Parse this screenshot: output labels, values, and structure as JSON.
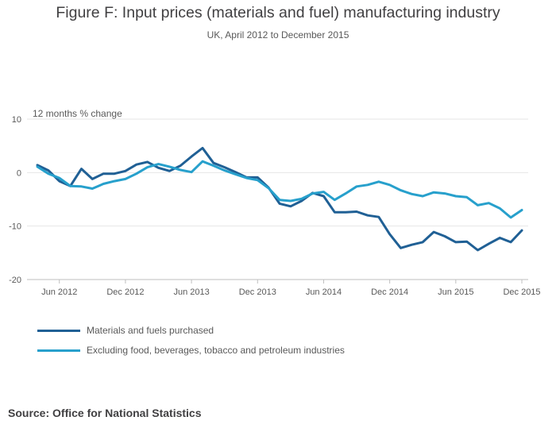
{
  "page": {
    "title": "Figure F: Input prices (materials and fuel) manufacturing industry",
    "subtitle": "UK, April 2012 to December 2015",
    "source": "Source: Office for National Statistics"
  },
  "chart_data": {
    "type": "line",
    "title": "Figure F: Input prices (materials and fuel) manufacturing industry",
    "subtitle": "UK, April 2012 to December 2015",
    "xlabel": "",
    "ylabel": "12 months % change",
    "ylim": [
      -20,
      10
    ],
    "yticks": [
      10,
      0,
      -10,
      -20
    ],
    "ytick_labels": [
      "10",
      "0",
      "-10",
      "-20"
    ],
    "xtick_labels": [
      "Jun 2012",
      "Dec 2012",
      "Jun 2013",
      "Dec 2013",
      "Jun 2014",
      "Dec 2014",
      "Jun 2015",
      "Dec 2015"
    ],
    "xtick_indices": [
      2,
      8,
      14,
      20,
      26,
      32,
      38,
      44
    ],
    "grid": true,
    "legend_position": "bottom-left",
    "x": [
      "Apr 2012",
      "May 2012",
      "Jun 2012",
      "Jul 2012",
      "Aug 2012",
      "Sep 2012",
      "Oct 2012",
      "Nov 2012",
      "Dec 2012",
      "Jan 2013",
      "Feb 2013",
      "Mar 2013",
      "Apr 2013",
      "May 2013",
      "Jun 2013",
      "Jul 2013",
      "Aug 2013",
      "Sep 2013",
      "Oct 2013",
      "Nov 2013",
      "Dec 2013",
      "Jan 2014",
      "Feb 2014",
      "Mar 2014",
      "Apr 2014",
      "May 2014",
      "Jun 2014",
      "Jul 2014",
      "Aug 2014",
      "Sep 2014",
      "Oct 2014",
      "Nov 2014",
      "Dec 2014",
      "Jan 2015",
      "Feb 2015",
      "Mar 2015",
      "Apr 2015",
      "May 2015",
      "Jun 2015",
      "Jul 2015",
      "Aug 2015",
      "Sep 2015",
      "Oct 2015",
      "Nov 2015",
      "Dec 2015"
    ],
    "series": [
      {
        "name": "Materials and fuels purchased",
        "color": "#206095",
        "values": [
          1.4,
          0.4,
          -1.6,
          -2.5,
          0.7,
          -1.2,
          -0.2,
          -0.2,
          0.3,
          1.5,
          2.0,
          0.9,
          0.3,
          1.3,
          3.0,
          4.6,
          1.8,
          1.0,
          0.1,
          -0.9,
          -0.9,
          -2.8,
          -5.8,
          -6.3,
          -5.3,
          -3.8,
          -4.4,
          -7.4,
          -7.4,
          -7.3,
          -8.0,
          -8.3,
          -11.5,
          -14.1,
          -13.5,
          -13.0,
          -11.1,
          -11.9,
          -13.0,
          -12.9,
          -14.5,
          -13.3,
          -12.2,
          -13.0,
          -10.8
        ]
      },
      {
        "name": "Excluding food, beverages, tobacco and petroleum industries",
        "color": "#27a0cc",
        "values": [
          1.1,
          -0.2,
          -1.0,
          -2.5,
          -2.6,
          -3.0,
          -2.1,
          -1.6,
          -1.2,
          -0.2,
          1.0,
          1.6,
          1.1,
          0.5,
          0.1,
          2.1,
          1.3,
          0.4,
          -0.3,
          -1.0,
          -1.4,
          -2.9,
          -5.1,
          -5.3,
          -4.9,
          -3.9,
          -3.6,
          -5.1,
          -3.9,
          -2.6,
          -2.3,
          -1.7,
          -2.3,
          -3.3,
          -4.0,
          -4.4,
          -3.7,
          -3.9,
          -4.4,
          -4.6,
          -6.1,
          -5.7,
          -6.7,
          -8.4,
          -7.0
        ]
      }
    ]
  }
}
